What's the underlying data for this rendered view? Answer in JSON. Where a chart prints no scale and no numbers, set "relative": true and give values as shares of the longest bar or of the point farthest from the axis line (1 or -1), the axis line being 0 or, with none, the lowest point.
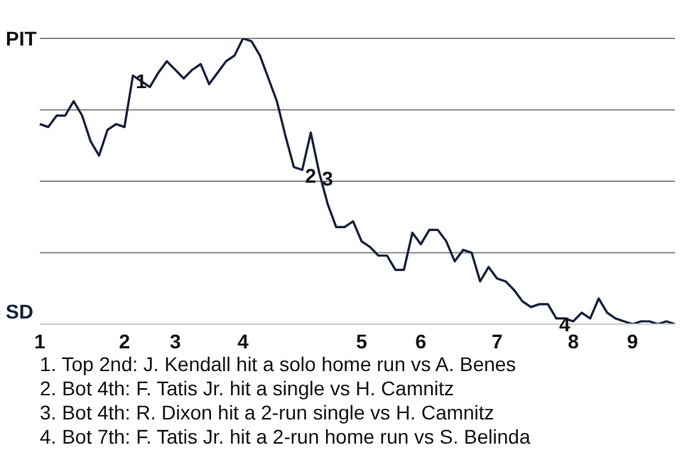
{
  "chart_data": {
    "type": "line",
    "categories": [
      "1",
      null,
      null,
      null,
      null,
      null,
      null,
      null,
      null,
      null,
      "2",
      null,
      null,
      null,
      null,
      null,
      "3",
      null,
      null,
      null,
      null,
      null,
      null,
      null,
      "4",
      null,
      null,
      null,
      null,
      null,
      null,
      null,
      null,
      null,
      null,
      null,
      null,
      null,
      "5",
      null,
      null,
      null,
      null,
      null,
      null,
      "6",
      null,
      null,
      null,
      null,
      null,
      null,
      null,
      null,
      "7",
      null,
      null,
      null,
      null,
      null,
      null,
      null,
      null,
      "8",
      null,
      null,
      null,
      null,
      null,
      null,
      "9",
      null,
      null,
      null,
      null,
      null
    ],
    "series": [
      {
        "color": "#14213d",
        "values": [
          0.7,
          0.69,
          0.73,
          0.73,
          0.78,
          0.73,
          0.64,
          0.59,
          0.68,
          0.7,
          0.69,
          0.87,
          0.85,
          0.83,
          0.88,
          0.92,
          0.89,
          0.86,
          0.89,
          0.91,
          0.84,
          0.88,
          0.92,
          0.94,
          1,
          0.99,
          0.94,
          0.86,
          0.78,
          0.66,
          0.55,
          0.54,
          0.67,
          0.53,
          0.42,
          0.34,
          0.34,
          0.36,
          0.29,
          0.27,
          0.24,
          0.24,
          0.19,
          0.19,
          0.32,
          0.28,
          0.33,
          0.33,
          0.29,
          0.22,
          0.26,
          0.25,
          0.15,
          0.2,
          0.16,
          0.15,
          0.12,
          0.08,
          0.06,
          0.07,
          0.07,
          0.02,
          0.02,
          0.01,
          0.04,
          0.02,
          0.09,
          0.04,
          0.02,
          0.01,
          0,
          0.01,
          0.01,
          0,
          0.01,
          0
        ]
      }
    ],
    "relative": true,
    "grid": "y",
    "marker": "none",
    "line_style": "solid",
    "annotations": [
      "PIT",
      "SD",
      {
        "text": "1",
        "y": 0.87
      },
      {
        "text": "2",
        "y": 0.54
      },
      {
        "text": "3",
        "y": 0.53
      },
      {
        "text": "4",
        "y": 0.02
      },
      "1. Top 2nd: J. Kendall hit a solo home run vs A. Benes",
      "2. Bot 4th: F. Tatis Jr. hit a single vs H. Camnitz",
      "3. Bot 4th: R. Dixon hit a 2-run single vs H. Camnitz",
      "4. Bot 7th: F. Tatis Jr. hit a 2-run home run vs S. Belinda"
    ]
  }
}
